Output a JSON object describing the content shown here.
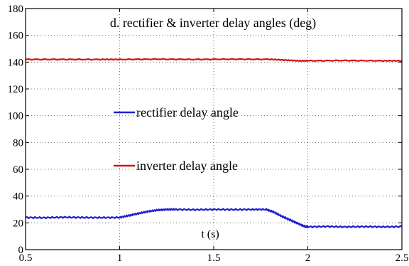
{
  "chart_data": {
    "type": "line",
    "title": "d. rectifier & inverter delay angles (deg)",
    "xlabel": "t (s)",
    "ylabel": "",
    "xlim": [
      0.5,
      2.5
    ],
    "ylim": [
      0,
      180
    ],
    "xticks": [
      "0.5",
      "1",
      "1.5",
      "2",
      "2.5"
    ],
    "yticks": [
      "0",
      "20",
      "40",
      "60",
      "80",
      "100",
      "120",
      "140",
      "160",
      "180"
    ],
    "grid": true,
    "legend_placement": "center-left",
    "series": [
      {
        "name": "rectifier delay angle",
        "color": "#1f1fd0",
        "x": [
          0.5,
          0.6,
          0.7,
          0.8,
          0.9,
          1.0,
          1.05,
          1.1,
          1.15,
          1.2,
          1.25,
          1.3,
          1.4,
          1.5,
          1.6,
          1.7,
          1.78,
          1.82,
          1.86,
          1.9,
          1.94,
          1.98,
          2.0,
          2.1,
          2.2,
          2.3,
          2.4,
          2.5
        ],
        "y": [
          24,
          23.8,
          24.2,
          24,
          23.9,
          24,
          25.5,
          27,
          28.5,
          29.5,
          30,
          30,
          29.8,
          30,
          29.9,
          30,
          30,
          28,
          25,
          22.5,
          20,
          17.5,
          17,
          17.3,
          17,
          17.2,
          17,
          17.2
        ]
      },
      {
        "name": "inverter delay angle",
        "color": "#d01414",
        "x": [
          0.5,
          0.7,
          0.9,
          1.0,
          1.2,
          1.4,
          1.6,
          1.8,
          1.88,
          1.95,
          2.0,
          2.2,
          2.4,
          2.5
        ],
        "y": [
          142,
          142,
          142,
          142,
          142.2,
          142,
          142.2,
          142.1,
          141.5,
          141,
          141,
          141.2,
          141,
          141
        ]
      }
    ]
  }
}
